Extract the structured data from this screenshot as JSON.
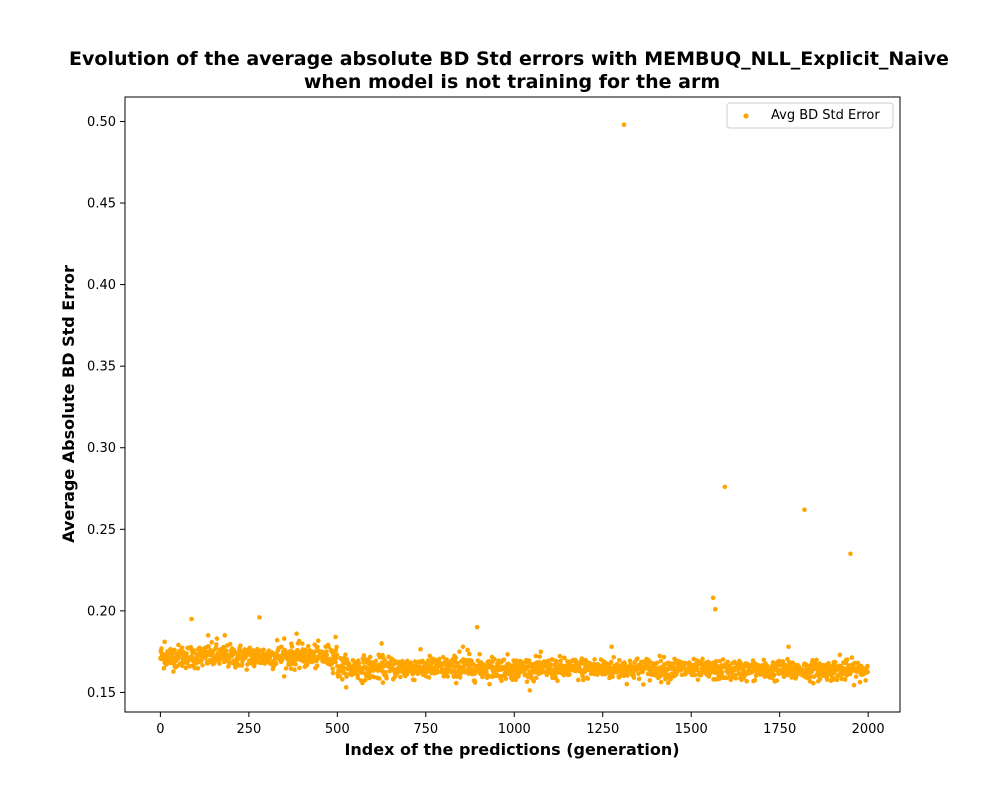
{
  "chart_data": {
    "type": "scatter",
    "title_line1": "Evolution of the average absolute BD Std errors with MEMBUQ_NLL_Explicit_Naive",
    "title_line2": "when model is not training for the arm",
    "xlabel": "Index of the predictions (generation)",
    "ylabel": "Average Absolute BD Std Error",
    "xlim": [
      -100,
      2090
    ],
    "ylim": [
      0.138,
      0.515
    ],
    "x_ticks": [
      0,
      250,
      500,
      750,
      1000,
      1250,
      1500,
      1750,
      2000
    ],
    "y_ticks": [
      0.15,
      0.2,
      0.25,
      0.3,
      0.35,
      0.4,
      0.45,
      0.5
    ],
    "x_tick_labels": [
      "0",
      "250",
      "500",
      "750",
      "1000",
      "1250",
      "1500",
      "1750",
      "2000"
    ],
    "y_tick_labels": [
      "0.15",
      "0.20",
      "0.25",
      "0.30",
      "0.35",
      "0.40",
      "0.45",
      "0.50"
    ],
    "legend": {
      "entries": [
        "Avg BD Std Error"
      ],
      "placement": "upper right"
    },
    "grid": false,
    "color": "#ffa500",
    "series": [
      {
        "name": "Avg BD Std Error",
        "bulk": [
          {
            "x_start": 0,
            "x_end": 499,
            "center": 0.172,
            "spread": 0.0035
          },
          {
            "x_start": 500,
            "x_end": 1000,
            "center": 0.165,
            "spread": 0.0035
          },
          {
            "x_start": 1000,
            "x_end": 1500,
            "center": 0.1645,
            "spread": 0.0033
          },
          {
            "x_start": 1500,
            "x_end": 1999,
            "center": 0.1635,
            "spread": 0.003
          }
        ],
        "outliers": [
          [
            1310,
            0.498
          ],
          [
            1595,
            0.276
          ],
          [
            1820,
            0.262
          ],
          [
            1950,
            0.235
          ],
          [
            1562,
            0.208
          ],
          [
            1568,
            0.201
          ],
          [
            88,
            0.195
          ],
          [
            280,
            0.196
          ],
          [
            895,
            0.19
          ],
          [
            385,
            0.186
          ],
          [
            182,
            0.185
          ],
          [
            135,
            0.185
          ],
          [
            495,
            0.184
          ],
          [
            160,
            0.183
          ],
          [
            350,
            0.183
          ],
          [
            330,
            0.182
          ],
          [
            12,
            0.181
          ],
          [
            625,
            0.18
          ],
          [
            1275,
            0.178
          ],
          [
            1775,
            0.178
          ],
          [
            855,
            0.178
          ],
          [
            868,
            0.176
          ],
          [
            845,
            0.175
          ],
          [
            1920,
            0.173
          ]
        ]
      }
    ]
  }
}
